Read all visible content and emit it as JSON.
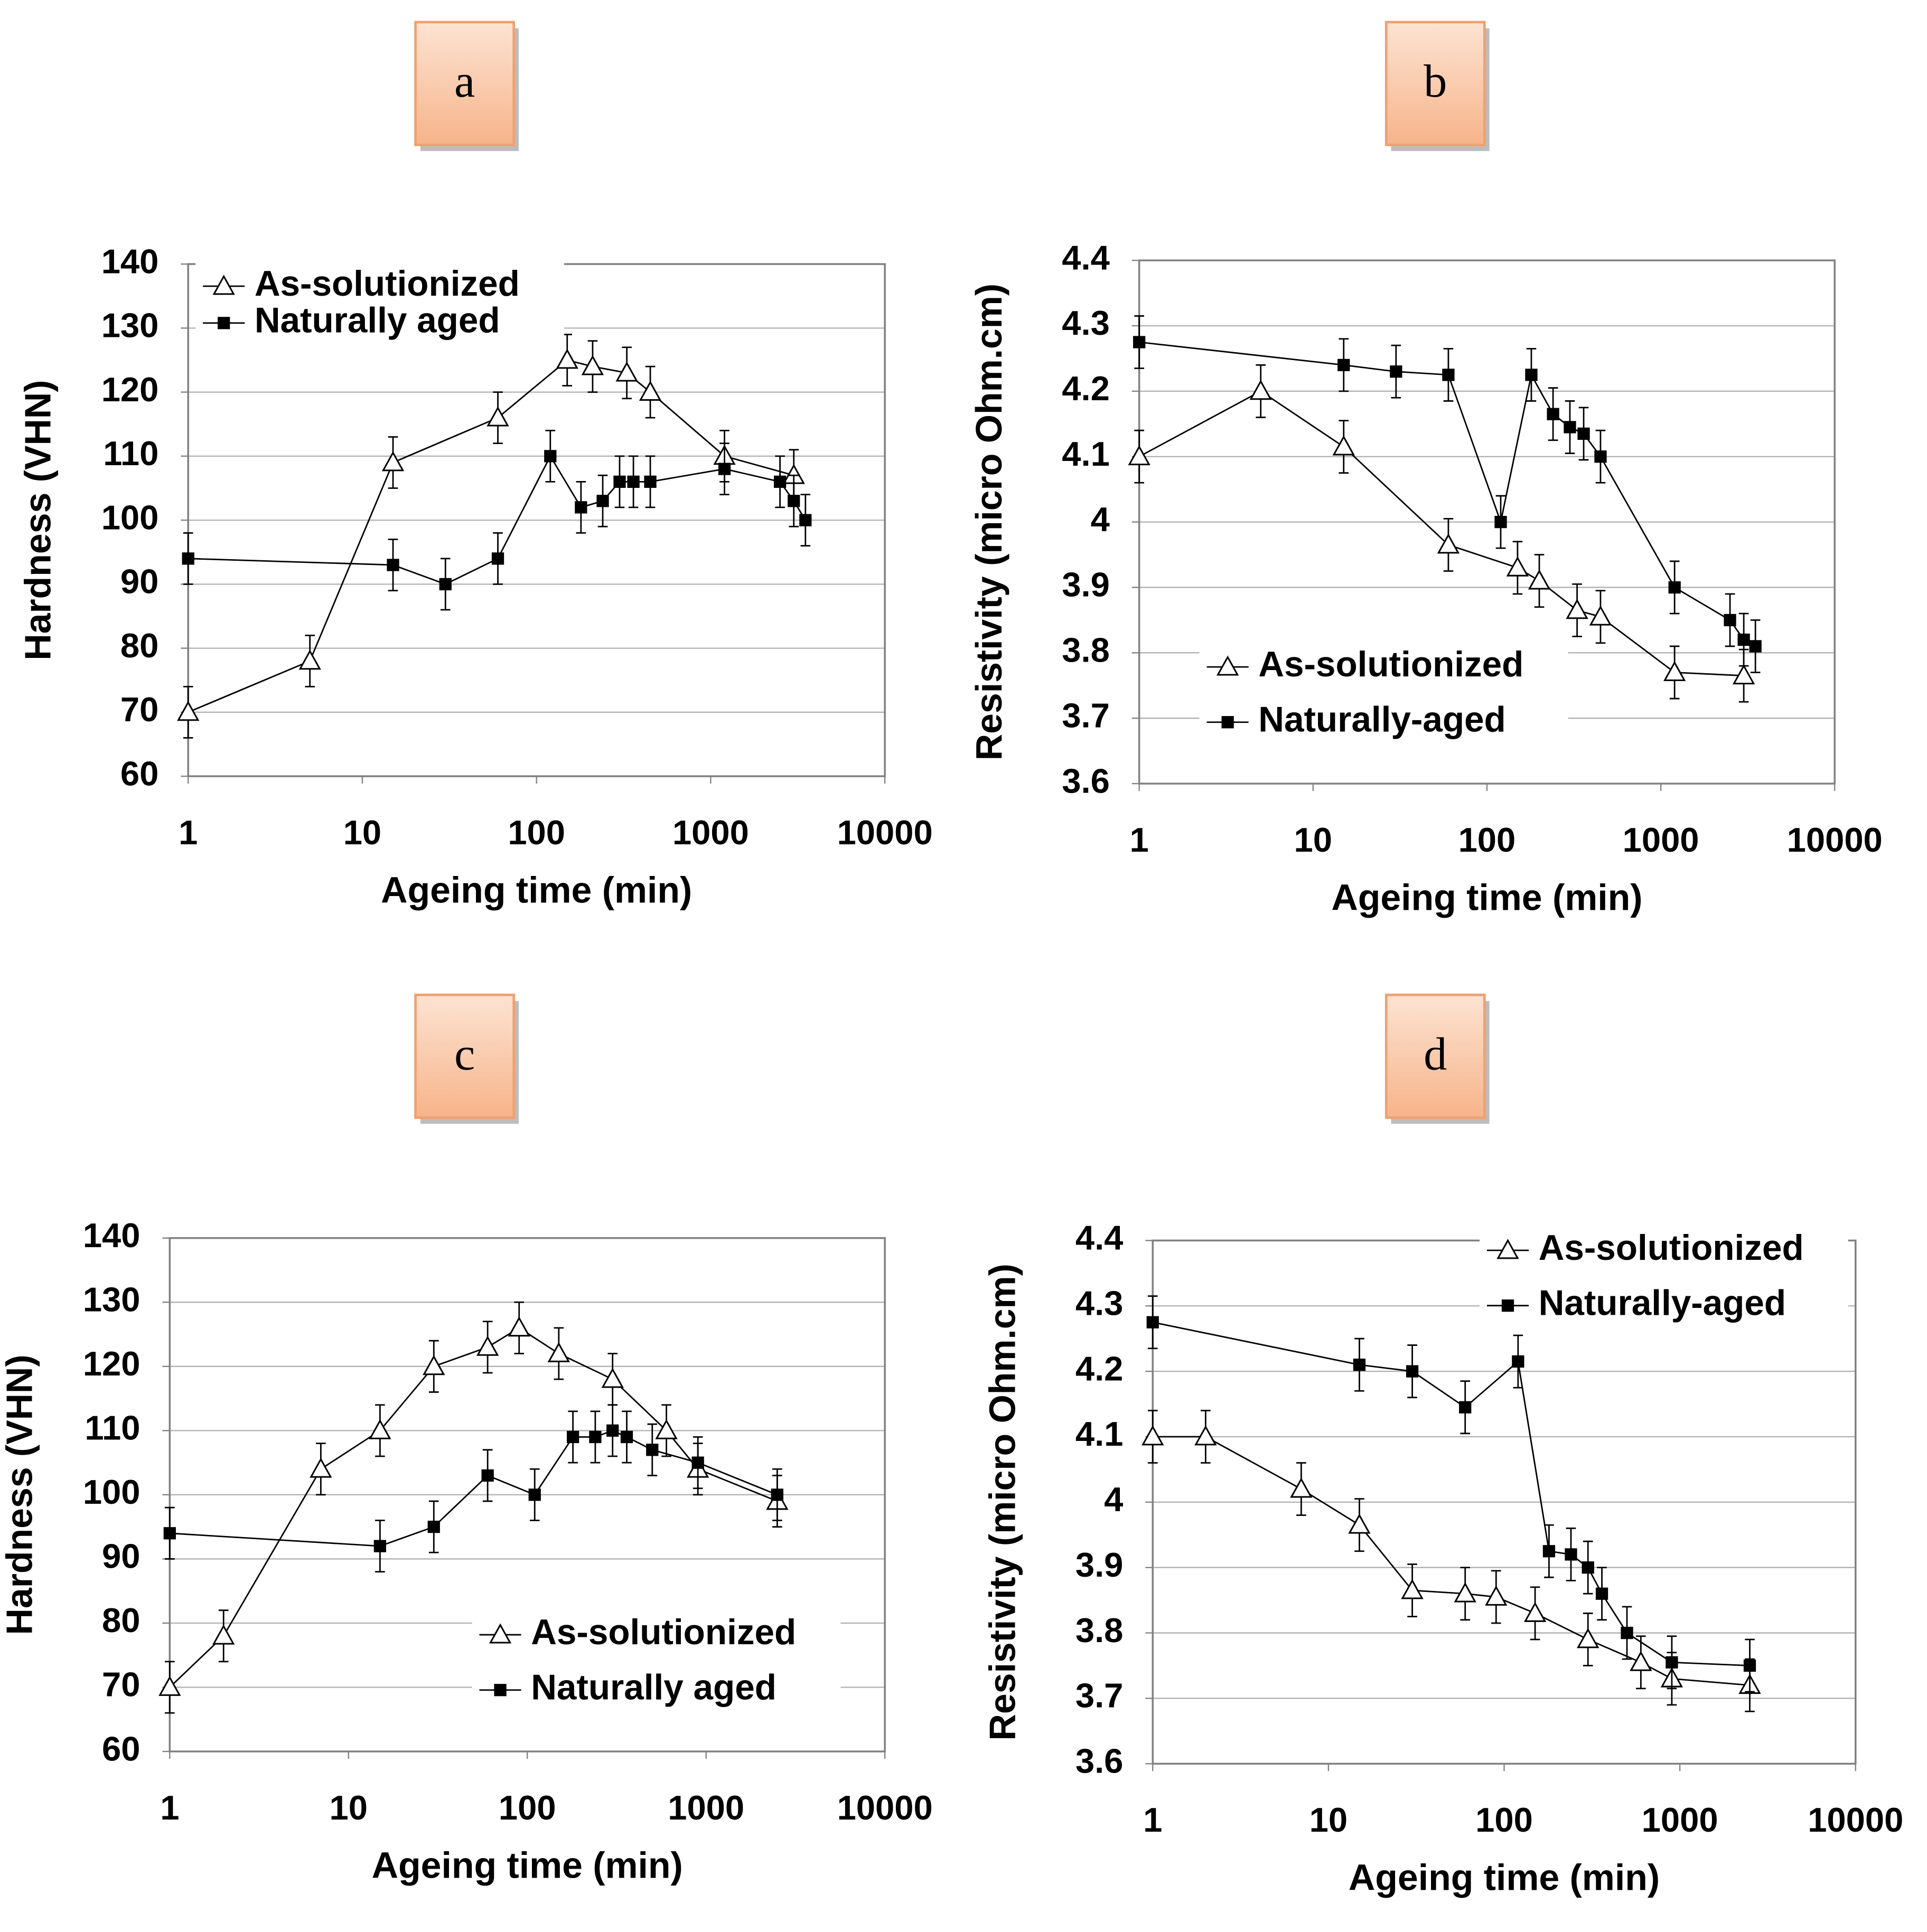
{
  "chart_data": [
    {
      "type": "line",
      "label": "a",
      "xlabel": "Ageing time (min)",
      "ylabel": "Hardness (VHN)",
      "log_x": true,
      "grid": true,
      "legend": "upper left",
      "xlim": [
        1,
        10000
      ],
      "xticks": [
        1,
        10,
        100,
        1000,
        10000
      ],
      "ylim": [
        60,
        140
      ],
      "yticks": [
        60,
        70,
        80,
        90,
        100,
        110,
        120,
        130,
        140
      ],
      "series": [
        {
          "name": "As-solutionized",
          "marker": "triangle",
          "color": "#000000",
          "x": [
            1,
            5,
            15,
            60,
            150,
            210,
            330,
            450,
            1200,
            3000
          ],
          "values": [
            70,
            78,
            109,
            116,
            125,
            124,
            123,
            120,
            110,
            107
          ],
          "errors": [
            4,
            4,
            4,
            4,
            4,
            4,
            4,
            4,
            4,
            4
          ]
        },
        {
          "name": "Naturally aged",
          "marker": "square",
          "color": "#000000",
          "x": [
            1,
            15,
            30,
            60,
            120,
            180,
            240,
            300,
            360,
            450,
            1200,
            2500,
            3000,
            3500
          ],
          "values": [
            94,
            93,
            90,
            94,
            110,
            102,
            103,
            106,
            106,
            106,
            108,
            106,
            103,
            100
          ],
          "errors": [
            4,
            4,
            4,
            4,
            4,
            4,
            4,
            4,
            4,
            4,
            4,
            4,
            4,
            4
          ]
        }
      ]
    },
    {
      "type": "line",
      "label": "b",
      "xlabel": "Ageing time (min)",
      "ylabel": "Resistivity (micro Ohm.cm)",
      "log_x": true,
      "grid": true,
      "legend": "lower left",
      "xlim": [
        1,
        10000
      ],
      "xticks": [
        1,
        10,
        100,
        1000,
        10000
      ],
      "ylim": [
        3.6,
        4.4
      ],
      "yticks": [
        3.6,
        3.7,
        3.8,
        3.9,
        4,
        4.1,
        4.2,
        4.3,
        4.4
      ],
      "series": [
        {
          "name": "As-solutionized",
          "marker": "triangle",
          "color": "#000000",
          "x": [
            1,
            5,
            15,
            60,
            150,
            200,
            330,
            450,
            1200,
            3000
          ],
          "values": [
            4.1,
            4.2,
            4.115,
            3.965,
            3.93,
            3.91,
            3.865,
            3.855,
            3.77,
            3.765
          ],
          "errors": [
            0.04,
            0.04,
            0.04,
            0.04,
            0.04,
            0.04,
            0.04,
            0.04,
            0.04,
            0.04
          ]
        },
        {
          "name": "Naturally-aged",
          "marker": "square",
          "color": "#000000",
          "x": [
            1,
            15,
            30,
            60,
            120,
            180,
            240,
            300,
            360,
            450,
            1200,
            2500,
            3000,
            3500
          ],
          "values": [
            4.275,
            4.24,
            4.23,
            4.225,
            4.0,
            4.225,
            4.165,
            4.145,
            4.135,
            4.1,
            3.9,
            3.85,
            3.82,
            3.81
          ],
          "errors": [
            0.04,
            0.04,
            0.04,
            0.04,
            0.04,
            0.04,
            0.04,
            0.04,
            0.04,
            0.04,
            0.04,
            0.04,
            0.04,
            0.04
          ]
        }
      ]
    },
    {
      "type": "line",
      "label": "c",
      "xlabel": "Ageing time (min)",
      "ylabel": "Hardness (VHN)",
      "log_x": true,
      "grid": true,
      "legend": "lower right",
      "xlim": [
        1,
        10000
      ],
      "xticks": [
        1,
        10,
        100,
        1000,
        10000
      ],
      "ylim": [
        60,
        140
      ],
      "yticks": [
        60,
        70,
        80,
        90,
        100,
        110,
        120,
        130,
        140
      ],
      "series": [
        {
          "name": "As-solutionized",
          "marker": "triangle",
          "color": "#000000",
          "x": [
            1,
            2,
            7,
            15,
            30,
            60,
            90,
            150,
            300,
            600,
            900,
            2500
          ],
          "values": [
            70,
            78,
            104,
            110,
            120,
            123,
            126,
            122,
            118,
            110,
            104,
            99
          ],
          "errors": [
            4,
            4,
            4,
            4,
            4,
            4,
            4,
            4,
            4,
            4,
            4,
            4
          ]
        },
        {
          "name": "Naturally aged",
          "marker": "square",
          "color": "#000000",
          "x": [
            1,
            15,
            30,
            60,
            110,
            180,
            240,
            300,
            360,
            500,
            900,
            2500
          ],
          "values": [
            94,
            92,
            95,
            103,
            100,
            109,
            109,
            110,
            109,
            107,
            105,
            100
          ],
          "errors": [
            4,
            4,
            4,
            4,
            4,
            4,
            4,
            4,
            4,
            4,
            4,
            4
          ]
        }
      ]
    },
    {
      "type": "line",
      "label": "d",
      "xlabel": "Ageing time (min)",
      "ylabel": "Resistivity (micro Ohm.cm)",
      "log_x": true,
      "grid": true,
      "legend": "upper right",
      "xlim": [
        1,
        10000
      ],
      "xticks": [
        1,
        10,
        100,
        1000,
        10000
      ],
      "ylim": [
        3.6,
        4.4
      ],
      "yticks": [
        3.6,
        3.7,
        3.8,
        3.9,
        4,
        4.1,
        4.2,
        4.3,
        4.4
      ],
      "series": [
        {
          "name": "As-solutionized",
          "marker": "triangle",
          "color": "#000000",
          "x": [
            1,
            2,
            7,
            15,
            30,
            60,
            90,
            150,
            300,
            600,
            900,
            2500
          ],
          "values": [
            4.1,
            4.1,
            4.02,
            3.965,
            3.865,
            3.86,
            3.855,
            3.83,
            3.79,
            3.755,
            3.73,
            3.72
          ],
          "errors": [
            0.04,
            0.04,
            0.04,
            0.04,
            0.04,
            0.04,
            0.04,
            0.04,
            0.04,
            0.04,
            0.04,
            0.04
          ]
        },
        {
          "name": "Naturally-aged",
          "marker": "square",
          "color": "#000000",
          "x": [
            1,
            15,
            30,
            60,
            120,
            180,
            240,
            300,
            360,
            500,
            900,
            2500
          ],
          "values": [
            4.275,
            4.21,
            4.2,
            4.145,
            4.215,
            3.925,
            3.92,
            3.9,
            3.86,
            3.8,
            3.755,
            3.75
          ],
          "errors": [
            0.04,
            0.04,
            0.04,
            0.04,
            0.04,
            0.04,
            0.04,
            0.04,
            0.04,
            0.04,
            0.04,
            0.04
          ]
        }
      ]
    }
  ]
}
